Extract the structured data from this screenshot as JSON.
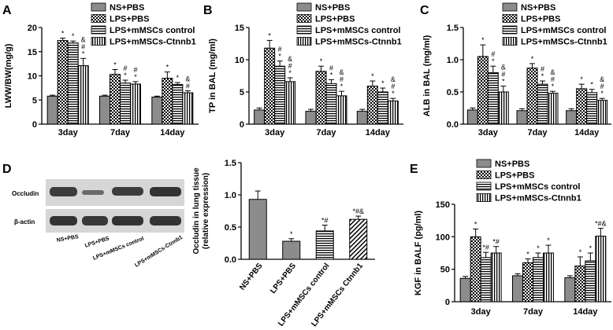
{
  "colors": {
    "ink": "#000000",
    "bar_ns": "#8c8c8c",
    "blot_bg": "#d6d6d6",
    "band": "#3c3c3c"
  },
  "legend_groups": [
    "NS+PBS",
    "LPS+PBS",
    "LPS+mMSCs control",
    "LPS+mMSCs-Ctnnb1"
  ],
  "chart_data": [
    {
      "panel": "A",
      "type": "bar",
      "title": "",
      "xlabel": "",
      "ylabel": "LWW/BW(mg/g)",
      "ylim": [
        0,
        20
      ],
      "yticks": [
        "0",
        "5",
        "10",
        "15",
        "20"
      ],
      "categories": [
        "3day",
        "7day",
        "14day"
      ],
      "series": [
        {
          "name": "NS+PBS",
          "values": [
            5.8,
            5.8,
            5.6
          ],
          "errors": [
            0.2,
            0.2,
            0.2
          ]
        },
        {
          "name": "LPS+PBS",
          "values": [
            17.3,
            10.3,
            9.5
          ],
          "errors": [
            0.5,
            1.0,
            1.3
          ]
        },
        {
          "name": "LPS+mMSCs control",
          "values": [
            16.8,
            8.5,
            8.2
          ],
          "errors": [
            0.4,
            0.6,
            0.4
          ]
        },
        {
          "name": "LPS+mMSCs-Ctnnb1",
          "values": [
            12.1,
            8.3,
            6.5
          ],
          "errors": [
            1.5,
            0.5,
            0.4
          ]
        }
      ],
      "annotations": [
        [
          "",
          "*",
          "*",
          "&\n#\n*"
        ],
        [
          "",
          "*",
          "#\n*",
          "#\n*"
        ],
        [
          "",
          "*",
          "*",
          "&\n#"
        ]
      ]
    },
    {
      "panel": "B",
      "type": "bar",
      "title": "",
      "xlabel": "",
      "ylabel": "TP in BAL (mg/ml)",
      "ylim": [
        0,
        15
      ],
      "yticks": [
        "0",
        "5",
        "10",
        "15"
      ],
      "categories": [
        "3day",
        "7day",
        "14day"
      ],
      "series": [
        {
          "name": "NS+PBS",
          "values": [
            2.2,
            2.0,
            2.0
          ],
          "errors": [
            0.3,
            0.3,
            0.3
          ]
        },
        {
          "name": "LPS+PBS",
          "values": [
            11.8,
            8.2,
            5.9
          ],
          "errors": [
            1.2,
            0.8,
            0.8
          ]
        },
        {
          "name": "LPS+mMSCs control",
          "values": [
            9.0,
            6.3,
            5.0
          ],
          "errors": [
            0.8,
            0.6,
            0.6
          ]
        },
        {
          "name": "LPS+mMSCs-Ctnnb1",
          "values": [
            6.6,
            4.4,
            3.6
          ],
          "errors": [
            0.6,
            0.7,
            0.4
          ]
        }
      ],
      "annotations": [
        [
          "",
          "*",
          "#\n*",
          "&\n#\n*"
        ],
        [
          "",
          "*",
          "#\n*",
          "&\n#\n*"
        ],
        [
          "",
          "*",
          "*",
          "&\n#\n*"
        ]
      ]
    },
    {
      "panel": "C",
      "type": "bar",
      "title": "",
      "xlabel": "",
      "ylabel": "ALB in BAL (mg/ml)",
      "ylim": [
        0,
        1.5
      ],
      "yticks": [
        "0.0",
        "0.5",
        "1.0",
        "1.5"
      ],
      "categories": [
        "3day",
        "7day",
        "14day"
      ],
      "series": [
        {
          "name": "NS+PBS",
          "values": [
            0.22,
            0.21,
            0.21
          ],
          "errors": [
            0.03,
            0.03,
            0.03
          ]
        },
        {
          "name": "LPS+PBS",
          "values": [
            1.05,
            0.87,
            0.55
          ],
          "errors": [
            0.18,
            0.07,
            0.07
          ]
        },
        {
          "name": "LPS+mMSCs control",
          "values": [
            0.8,
            0.62,
            0.49
          ],
          "errors": [
            0.1,
            0.05,
            0.05
          ]
        },
        {
          "name": "LPS+mMSCs-Ctnnb1",
          "values": [
            0.5,
            0.48,
            0.37
          ],
          "errors": [
            0.09,
            0.03,
            0.03
          ]
        }
      ],
      "annotations": [
        [
          "",
          "*",
          "#\n*",
          "&\n#\n*"
        ],
        [
          "",
          "*",
          "#\n*",
          "&\n#\n*"
        ],
        [
          "",
          "*",
          "*",
          "&\n#\n*"
        ]
      ]
    },
    {
      "panel": "D",
      "type": "bar",
      "title": "",
      "xlabel": "",
      "ylabel": "Occludin in lung tissue\n(relative expression)",
      "ylim": [
        0,
        1.5
      ],
      "yticks": [
        "0.0",
        "0.5",
        "1.0",
        "1.5"
      ],
      "categories": [
        "NS+PBS",
        "LPS+PBS",
        "LPS+mMSCs control",
        "LPS+mMSCs Ctnnb1"
      ],
      "series": [
        {
          "name": "Occludin",
          "values": [
            0.93,
            0.28,
            0.44,
            0.62
          ],
          "errors": [
            0.13,
            0.04,
            0.09,
            0.05
          ]
        }
      ],
      "annotations": [
        [
          "",
          "*",
          "*#",
          "*#&"
        ]
      ]
    },
    {
      "panel": "E",
      "type": "bar",
      "title": "",
      "xlabel": "",
      "ylabel": "KGF in BALF (pg/ml)",
      "ylim": [
        0,
        150
      ],
      "yticks": [
        "0",
        "50",
        "100",
        "150"
      ],
      "categories": [
        "3day",
        "7day",
        "14day"
      ],
      "series": [
        {
          "name": "NS+PBS",
          "values": [
            36,
            40,
            37
          ],
          "errors": [
            3,
            3,
            3
          ]
        },
        {
          "name": "LPS+PBS",
          "values": [
            100,
            60,
            55
          ],
          "errors": [
            12,
            6,
            14
          ]
        },
        {
          "name": "LPS+mMSCs control",
          "values": [
            68,
            68,
            63
          ],
          "errors": [
            8,
            7,
            12
          ]
        },
        {
          "name": "LPS+mMSCs-Ctnnb1",
          "values": [
            75,
            75,
            101
          ],
          "errors": [
            10,
            12,
            12
          ]
        }
      ],
      "annotations": [
        [
          "",
          "*",
          "*#",
          "*#"
        ],
        [
          "",
          "*",
          "*",
          "*"
        ],
        [
          "",
          "*",
          "*",
          "*#&"
        ]
      ]
    }
  ],
  "panel_letters": [
    "A",
    "B",
    "C",
    "D",
    "E"
  ],
  "blot": {
    "rows": [
      "Occludin",
      "β-actin"
    ],
    "lanes": [
      "NS+PBS",
      "LPS+PBS",
      "LPS+mMSCs control",
      "LPS+mMSCs-Ctnnb1"
    ]
  }
}
